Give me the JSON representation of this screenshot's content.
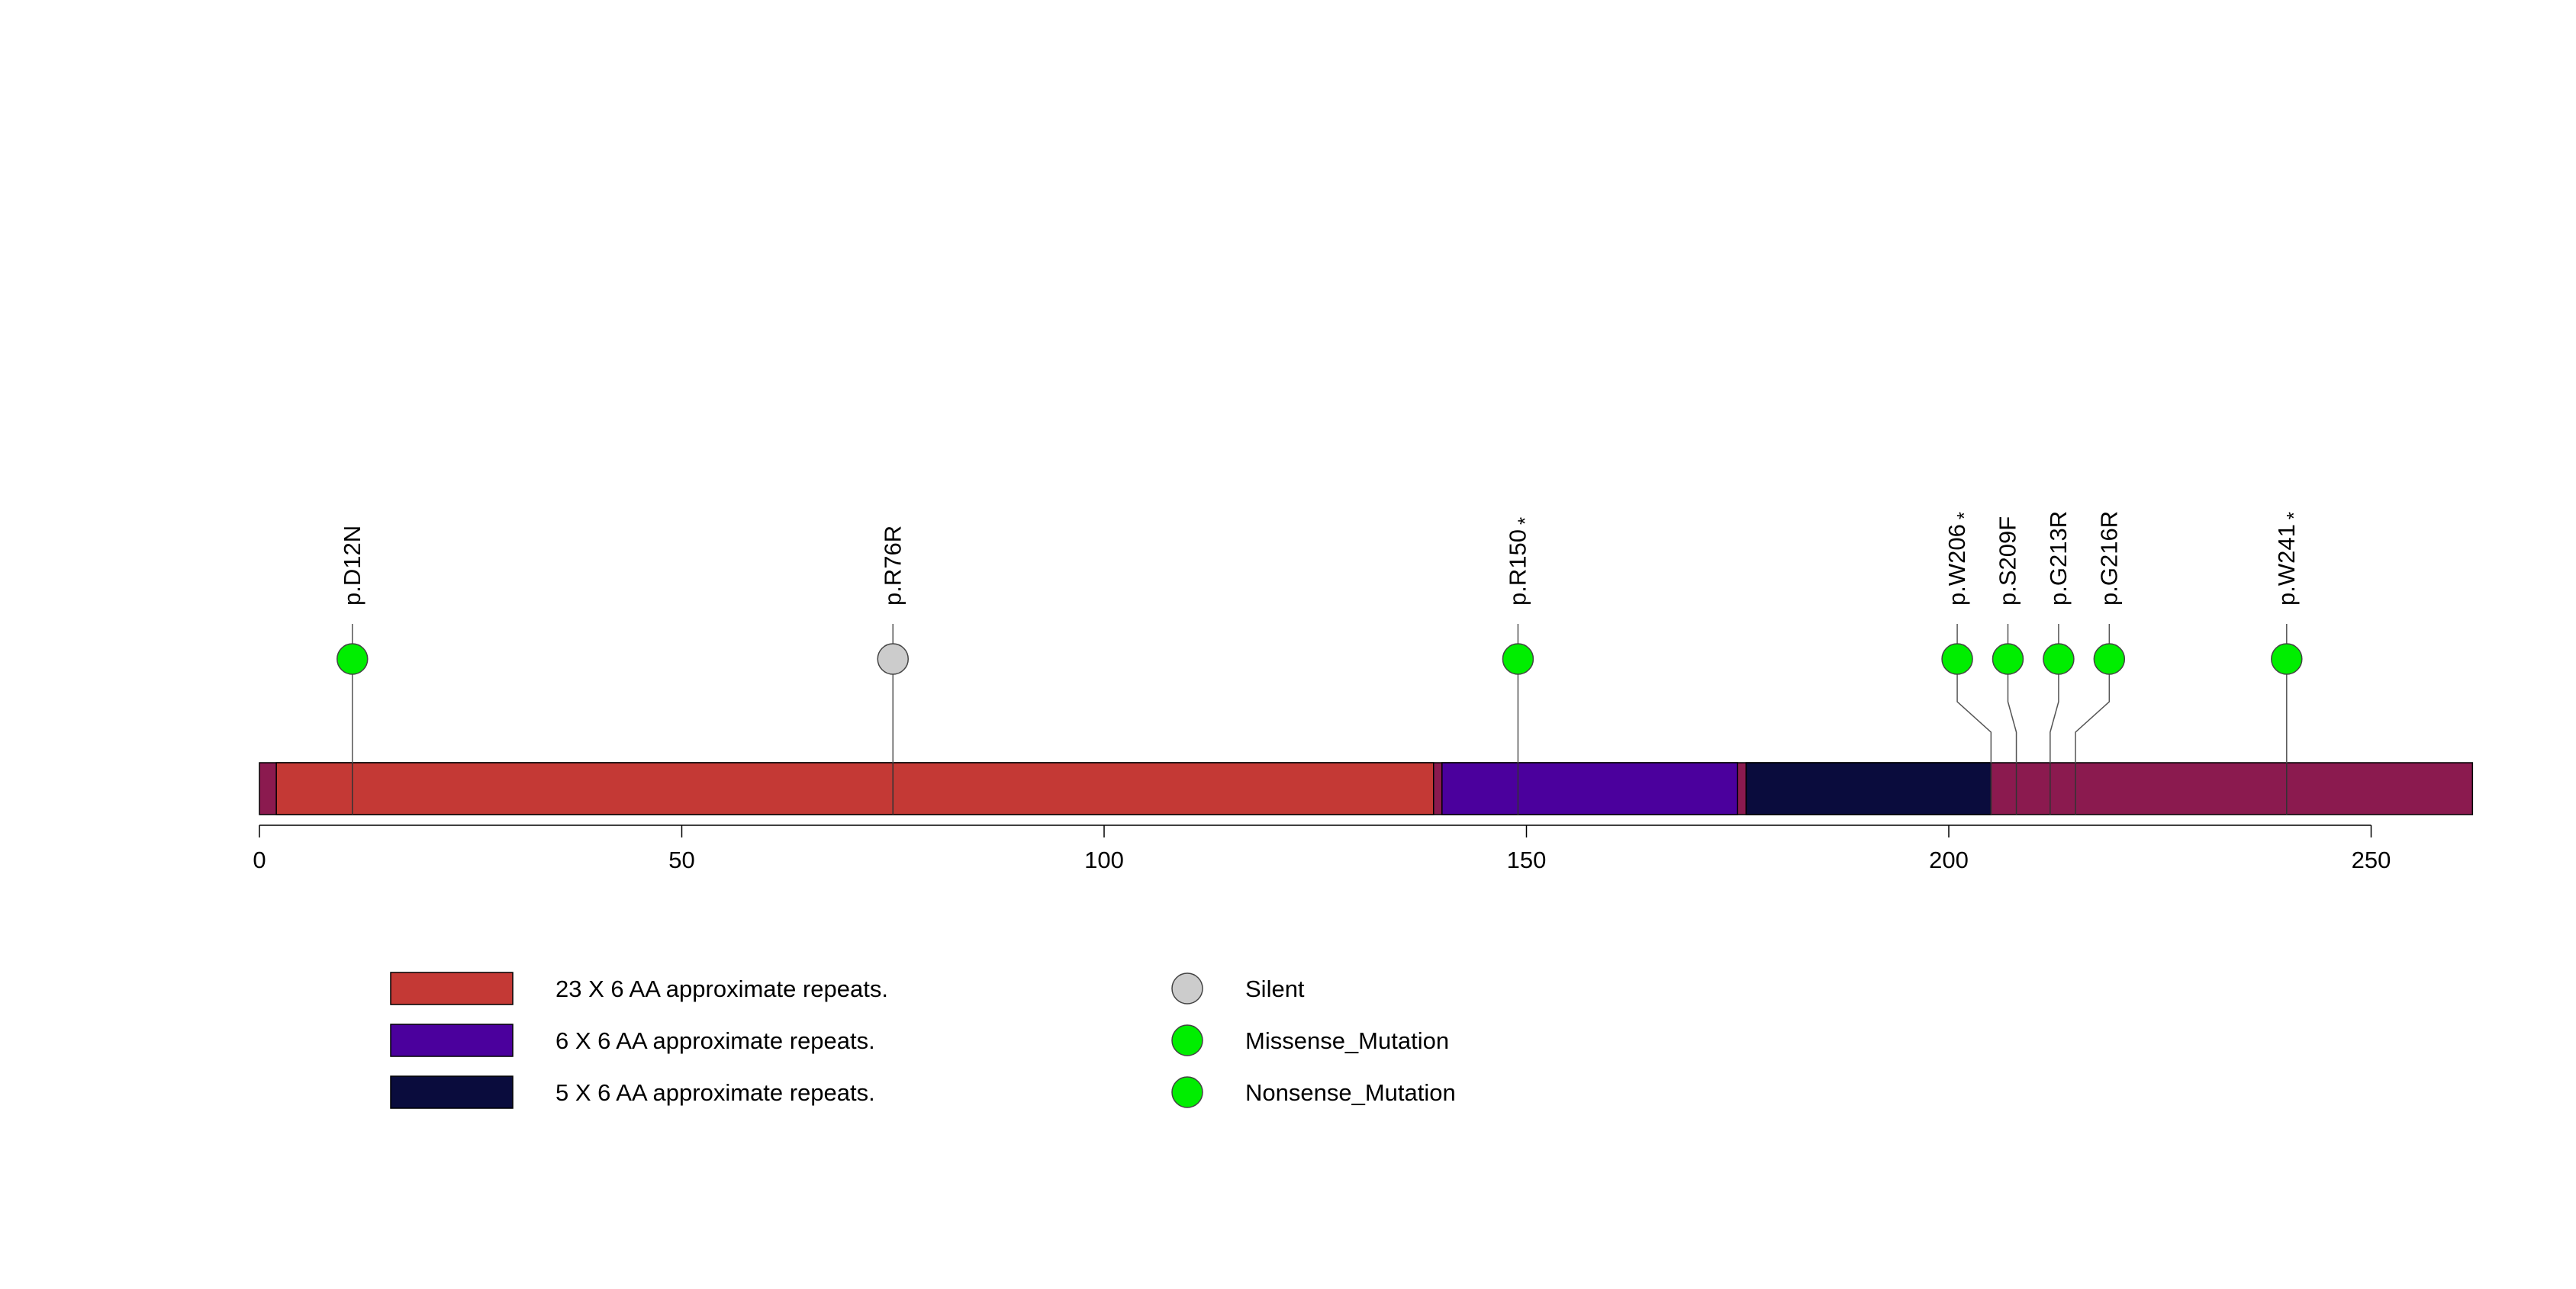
{
  "chart_data": {
    "type": "lollipop",
    "title": "",
    "xlabel": "",
    "ylabel": "",
    "protein_length": 262,
    "xlim": [
      0,
      262
    ],
    "ticks": [
      0,
      50,
      100,
      150,
      200,
      250
    ],
    "tick_labels": [
      "0",
      "50",
      "100",
      "150",
      "200",
      "250"
    ],
    "colors": {
      "backbone": "#8b1a4f",
      "repeat23": "#c43935",
      "repeat6": "#4b009d",
      "repeat5": "#0a0c3d",
      "silent": "#cccccc",
      "missense": "#00ee00",
      "nonsense": "#00ee00"
    },
    "domains": [
      {
        "name": "23 X 6 AA approximate repeats.",
        "start": 2,
        "end": 139,
        "color": "#c43935"
      },
      {
        "name": "6 X 6 AA approximate repeats.",
        "start": 140,
        "end": 175,
        "color": "#4b009d"
      },
      {
        "name": "5 X 6 AA approximate repeats.",
        "start": 176,
        "end": 205,
        "color": "#0a0c3d"
      }
    ],
    "backbone_segments": [
      {
        "start": 0,
        "end": 2
      },
      {
        "start": 139,
        "end": 140
      },
      {
        "start": 175,
        "end": 176
      },
      {
        "start": 205,
        "end": 262
      }
    ],
    "mutations": [
      {
        "label": "p.D12N",
        "position": 11,
        "type": "Missense_Mutation",
        "display_position": 11,
        "star": false
      },
      {
        "label": "p.R76R",
        "position": 75,
        "type": "Silent",
        "display_position": 75,
        "star": false
      },
      {
        "label": "p.R150",
        "position": 149,
        "type": "Nonsense_Mutation",
        "display_position": 149,
        "star": true
      },
      {
        "label": "p.W206",
        "position": 205,
        "type": "Nonsense_Mutation",
        "display_position": 201,
        "star": true
      },
      {
        "label": "p.S209F",
        "position": 208,
        "type": "Missense_Mutation",
        "display_position": 207,
        "star": false
      },
      {
        "label": "p.G213R",
        "position": 212,
        "type": "Missense_Mutation",
        "display_position": 213,
        "star": false
      },
      {
        "label": "p.G216R",
        "position": 215,
        "type": "Missense_Mutation",
        "display_position": 219,
        "star": false
      },
      {
        "label": "p.W241",
        "position": 240,
        "type": "Nonsense_Mutation",
        "display_position": 240,
        "star": true
      }
    ],
    "star_symbol": "*",
    "legend_domains": [
      {
        "label": "23 X 6 AA approximate repeats.",
        "color": "#c43935"
      },
      {
        "label": "6 X 6 AA approximate repeats.",
        "color": "#4b009d"
      },
      {
        "label": "5 X 6 AA approximate repeats.",
        "color": "#0a0c3d"
      }
    ],
    "legend_mutations": [
      {
        "label": "Silent",
        "color": "#cccccc"
      },
      {
        "label": "Missense_Mutation",
        "color": "#00ee00"
      },
      {
        "label": "Nonsense_Mutation",
        "color": "#00ee00"
      }
    ]
  }
}
